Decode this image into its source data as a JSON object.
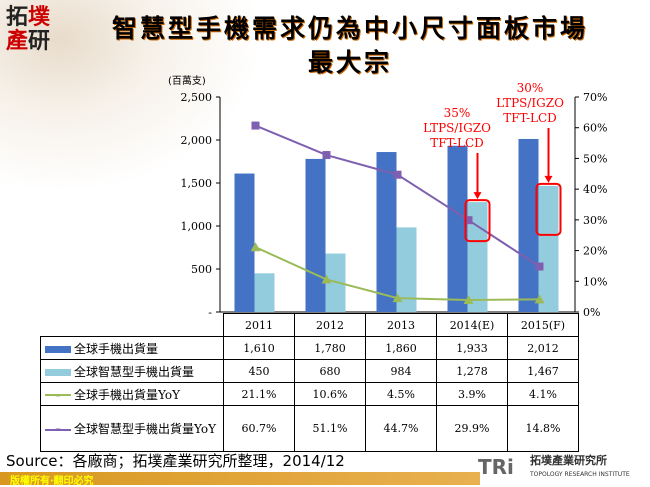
{
  "logo": {
    "text": "拓墣產研"
  },
  "title": {
    "line1": "智慧型手機需求仍為中小尺寸面板市場",
    "line2": "最大宗"
  },
  "chart_data": {
    "type": "bar+line",
    "unit_label": "(百萬支)",
    "categories": [
      "2011",
      "2012",
      "2013",
      "2014(E)",
      "2015(F)"
    ],
    "left_axis": {
      "ylim": [
        0,
        2500
      ],
      "ticks": [
        "-",
        "500",
        "1,000",
        "1,500",
        "2,000",
        "2,500"
      ]
    },
    "right_axis": {
      "ylim": [
        0,
        70
      ],
      "ticks": [
        "0%",
        "10%",
        "20%",
        "30%",
        "40%",
        "50%",
        "60%",
        "70%"
      ]
    },
    "series": [
      {
        "name": "全球手機出貨量",
        "type": "bar",
        "axis": "left",
        "color": "#4472c4",
        "values": [
          1610,
          1780,
          1860,
          1933,
          2012
        ],
        "labels": [
          "1,610",
          "1,780",
          "1,860",
          "1,933",
          "2,012"
        ]
      },
      {
        "name": "全球智慧型手機出貨量",
        "type": "bar",
        "axis": "left",
        "color": "#93cddd",
        "values": [
          450,
          680,
          984,
          1278,
          1467
        ],
        "labels": [
          "450",
          "680",
          "984",
          "1,278",
          "1,467"
        ]
      },
      {
        "name": "全球手機出貨量YoY",
        "type": "line",
        "axis": "right",
        "color": "#9bbb59",
        "marker": "triangle",
        "values": [
          21.1,
          10.6,
          4.5,
          3.9,
          4.1
        ],
        "labels": [
          "21.1%",
          "10.6%",
          "4.5%",
          "3.9%",
          "4.1%"
        ]
      },
      {
        "name": "全球智慧型手機出貨量YoY",
        "type": "line",
        "axis": "right",
        "color": "#7f5faf",
        "marker": "square",
        "values": [
          60.7,
          51.1,
          44.7,
          29.9,
          14.8
        ],
        "labels": [
          "60.7%",
          "51.1%",
          "44.7%",
          "29.9%",
          "14.8%"
        ]
      }
    ],
    "annotations": [
      {
        "category": "2014(E)",
        "lines": [
          "35%",
          "LTPS/IGZO",
          "TFT-LCD"
        ],
        "color": "#ff0000"
      },
      {
        "category": "2015(F)",
        "lines": [
          "30%",
          "LTPS/IGZO",
          "TFT-LCD"
        ],
        "color": "#ff0000"
      }
    ]
  },
  "source": "Source：各廠商；拓墣產業研究所整理，2014/12",
  "footer": {
    "copyright": "版權所有‧翻印必究",
    "brand": "TRi",
    "org_cn": "拓墣產業研究所",
    "org_en": "TOPOLOGY RESEARCH INSTITUTE"
  }
}
